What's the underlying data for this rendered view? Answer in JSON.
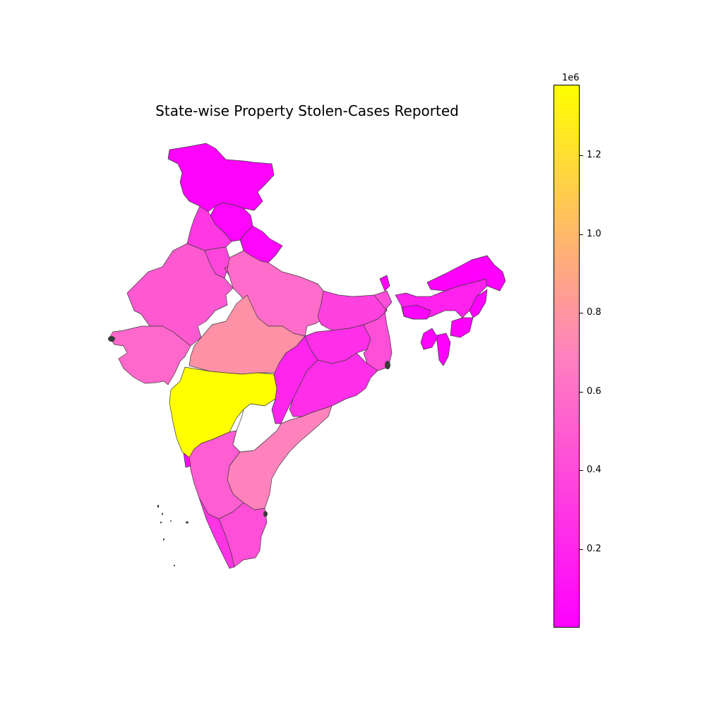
{
  "title": "State-wise Property Stolen-Cases Reported",
  "colormap": {
    "low": "#ff00ff",
    "mid": "#ff80bf",
    "high": "#ffff00"
  },
  "colorbar": {
    "offset_label": "1e6",
    "range": [
      0,
      1380000
    ],
    "ticks": [
      {
        "value": 200000,
        "label": "0.2"
      },
      {
        "value": 400000,
        "label": "0.4"
      },
      {
        "value": 600000,
        "label": "0.6"
      },
      {
        "value": 800000,
        "label": "0.8"
      },
      {
        "value": 1000000,
        "label": "1.0"
      },
      {
        "value": 1200000,
        "label": "1.2"
      }
    ]
  },
  "regions": [
    {
      "name": "Jammu and Kashmir",
      "value": 20000
    },
    {
      "name": "Himachal Pradesh",
      "value": 30000
    },
    {
      "name": "Punjab",
      "value": 300000
    },
    {
      "name": "Uttarakhand",
      "value": 40000
    },
    {
      "name": "Haryana",
      "value": 380000
    },
    {
      "name": "Delhi",
      "value": 400000
    },
    {
      "name": "Rajasthan",
      "value": 480000
    },
    {
      "name": "Uttar Pradesh",
      "value": 580000
    },
    {
      "name": "Gujarat",
      "value": 560000
    },
    {
      "name": "Madhya Pradesh",
      "value": 780000
    },
    {
      "name": "Maharashtra",
      "value": 1380000
    },
    {
      "name": "Bihar",
      "value": 350000
    },
    {
      "name": "Jharkhand",
      "value": 250000
    },
    {
      "name": "West Bengal",
      "value": 420000
    },
    {
      "name": "Chhattisgarh",
      "value": 200000
    },
    {
      "name": "Odisha",
      "value": 250000
    },
    {
      "name": "Andhra Pradesh",
      "value": 700000
    },
    {
      "name": "Karnataka",
      "value": 500000
    },
    {
      "name": "Goa",
      "value": 50000
    },
    {
      "name": "Kerala",
      "value": 280000
    },
    {
      "name": "Tamil Nadu",
      "value": 420000
    },
    {
      "name": "Sikkim",
      "value": 10000
    },
    {
      "name": "Assam",
      "value": 180000
    },
    {
      "name": "Arunachal Pradesh",
      "value": 10000
    },
    {
      "name": "Nagaland",
      "value": 10000
    },
    {
      "name": "Manipur",
      "value": 10000
    },
    {
      "name": "Mizoram",
      "value": 10000
    },
    {
      "name": "Tripura",
      "value": 20000
    },
    {
      "name": "Meghalaya",
      "value": 20000
    },
    {
      "name": "Telangana",
      "value": null
    }
  ]
}
